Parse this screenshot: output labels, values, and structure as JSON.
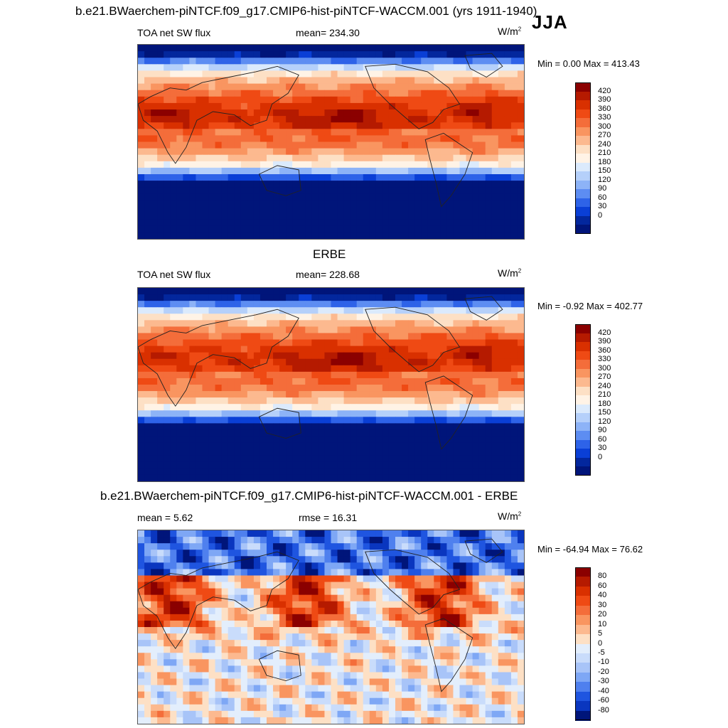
{
  "header": {
    "title": "b.e21.BWaerchem-piNTCF.f09_g17.CMIP6-hist-piNTCF-WACCM.001 (yrs 1911-1940)",
    "season": "JJA"
  },
  "panels": [
    {
      "title": "",
      "left_label": "TOA net SW flux",
      "center_label": "mean= 234.30",
      "units": "W/m",
      "units_sup": "2",
      "minmax": "Min =   0.00 Max = 413.43",
      "colorbar": {
        "labels": [
          "420",
          "390",
          "360",
          "330",
          "300",
          "270",
          "240",
          "210",
          "180",
          "150",
          "120",
          "90",
          "60",
          "30",
          "0"
        ],
        "colors": [
          "#8b0000",
          "#b51a00",
          "#d93000",
          "#ef4a14",
          "#f46d3a",
          "#f99560",
          "#fcb98f",
          "#fde0c5",
          "#fff3e6",
          "#dbeafc",
          "#b5d0fa",
          "#8db3f7",
          "#5d8df2",
          "#2e63e8",
          "#0a3fd6",
          "#03279d",
          "#00157a"
        ]
      },
      "field": "model"
    },
    {
      "title": "ERBE",
      "left_label": "TOA net SW flux",
      "center_label": "mean= 228.68",
      "units": "W/m",
      "units_sup": "2",
      "minmax": "Min =  -0.92 Max = 402.77",
      "colorbar": {
        "labels": [
          "420",
          "390",
          "360",
          "330",
          "300",
          "270",
          "240",
          "210",
          "180",
          "150",
          "120",
          "90",
          "60",
          "30",
          "0"
        ],
        "colors": [
          "#8b0000",
          "#b51a00",
          "#d93000",
          "#ef4a14",
          "#f46d3a",
          "#f99560",
          "#fcb98f",
          "#fde0c5",
          "#fff3e6",
          "#dbeafc",
          "#b5d0fa",
          "#8db3f7",
          "#5d8df2",
          "#2e63e8",
          "#0a3fd6",
          "#03279d",
          "#00157a"
        ]
      },
      "field": "obs"
    },
    {
      "title": "b.e21.BWaerchem-piNTCF.f09_g17.CMIP6-hist-piNTCF-WACCM.001 - ERBE",
      "left_label": "mean =   5.62",
      "center_label": "rmse =  16.31",
      "units": "W/m",
      "units_sup": "2",
      "minmax": "Min = -64.94 Max =  76.62",
      "colorbar": {
        "labels": [
          "80",
          "60",
          "40",
          "30",
          "20",
          "10",
          "5",
          "0",
          "-5",
          "-10",
          "-20",
          "-30",
          "-40",
          "-60",
          "-80"
        ],
        "colors": [
          "#8b0000",
          "#b51a00",
          "#d93000",
          "#ef4a14",
          "#f46d3a",
          "#f99560",
          "#fcb98f",
          "#fde0c5",
          "#e3eefc",
          "#c9dcfb",
          "#a8c4f8",
          "#7ea7f5",
          "#4f80ee",
          "#1f55e0",
          "#0a36bf",
          "#00157a"
        ]
      },
      "field": "diff"
    }
  ]
}
